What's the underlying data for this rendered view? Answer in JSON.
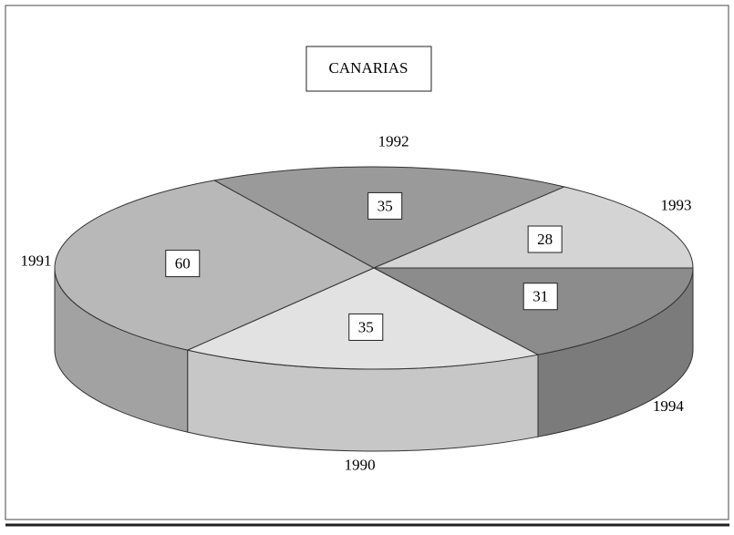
{
  "chart_data": {
    "type": "pie",
    "title": "CANARIAS",
    "categories": [
      "1994",
      "1990",
      "1991",
      "1992",
      "1993"
    ],
    "values": [
      31,
      35,
      60,
      35,
      28
    ],
    "colors": [
      "#8c8c8c",
      "#e2e2e2",
      "#b8b8b8",
      "#9a9a9a",
      "#d4d4d4"
    ]
  }
}
